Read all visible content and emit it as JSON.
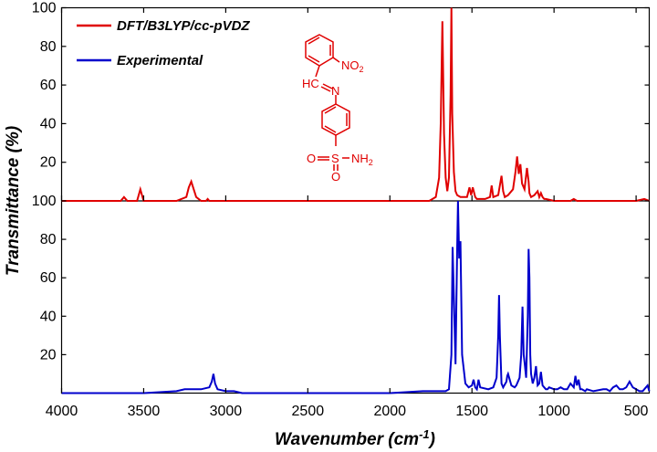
{
  "chart_data": {
    "type": "line",
    "xlabel": "Wavenumber (cm",
    "xlabel_sup": "-1",
    "xlabel_close": ")",
    "ylabel": "Transmittance (%)",
    "xlim": [
      4000,
      420
    ],
    "x_reversed": true,
    "x_ticks": [
      4000,
      3500,
      3000,
      2500,
      2000,
      1500,
      1000,
      500
    ],
    "x_tick_labels": [
      "4000",
      "3500",
      "3000",
      "2500",
      "2000",
      "1500",
      "1000",
      "500"
    ],
    "grid": false,
    "legend_position": "top-left",
    "panels": [
      {
        "name": "top",
        "ylim": [
          0,
          100
        ],
        "y_ticks": [
          20,
          40,
          60,
          80,
          100
        ],
        "y_tick_labels": [
          "20",
          "40",
          "60",
          "80",
          "100"
        ],
        "series": [
          {
            "name": "DFT/B3LYP/cc-pVDZ",
            "color": "#e00000",
            "x": [
              4000,
              3700,
              3640,
              3620,
              3600,
              3540,
              3520,
              3500,
              3460,
              3300,
              3240,
              3225,
              3210,
              3195,
              3180,
              3150,
              3120,
              3110,
              3100,
              3000,
              2500,
              2000,
              1760,
              1720,
              1700,
              1690,
              1680,
              1670,
              1660,
              1650,
              1640,
              1630,
              1625,
              1620,
              1610,
              1600,
              1590,
              1570,
              1530,
              1515,
              1505,
              1495,
              1480,
              1470,
              1460,
              1420,
              1390,
              1380,
              1370,
              1340,
              1320,
              1310,
              1300,
              1280,
              1250,
              1235,
              1225,
              1215,
              1205,
              1195,
              1180,
              1165,
              1155,
              1150,
              1140,
              1120,
              1100,
              1090,
              1080,
              1070,
              1060,
              1050,
              1000,
              900,
              880,
              860,
              800,
              700,
              600,
              500,
              450,
              420
            ],
            "y": [
              0,
              0,
              0,
              2,
              0,
              0,
              6,
              0,
              0,
              0,
              2,
              7,
              10,
              6,
              2,
              0,
              0,
              1,
              0,
              0,
              0,
              0,
              0,
              2,
              12,
              40,
              93,
              35,
              12,
              5,
              12,
              55,
              100,
              45,
              15,
              5,
              3,
              2,
              2,
              7,
              3,
              7,
              2,
              1,
              1,
              1,
              2,
              8,
              2,
              3,
              13,
              5,
              2,
              3,
              6,
              15,
              23,
              14,
              19,
              9,
              6,
              17,
              10,
              4,
              2,
              3,
              5,
              2,
              4,
              2,
              1,
              1,
              0,
              0,
              1,
              0,
              0,
              0,
              0,
              0,
              1,
              0
            ]
          }
        ]
      },
      {
        "name": "bottom",
        "ylim": [
          0,
          100
        ],
        "y_ticks": [
          20,
          40,
          60,
          80,
          100
        ],
        "y_tick_labels": [
          "20",
          "40",
          "60",
          "80",
          "100"
        ],
        "series": [
          {
            "name": "Experimental",
            "color": "#0000cc",
            "x": [
              4000,
              3500,
              3300,
              3250,
              3200,
              3150,
              3100,
              3085,
              3075,
              3065,
              3050,
              3000,
              2950,
              2900,
              2800,
              2500,
              2000,
              1800,
              1700,
              1660,
              1640,
              1625,
              1618,
              1610,
              1600,
              1590,
              1585,
              1578,
              1570,
              1560,
              1540,
              1520,
              1500,
              1490,
              1480,
              1470,
              1460,
              1450,
              1400,
              1370,
              1350,
              1340,
              1335,
              1330,
              1320,
              1310,
              1290,
              1285,
              1280,
              1270,
              1260,
              1240,
              1230,
              1210,
              1200,
              1192,
              1185,
              1178,
              1170,
              1160,
              1155,
              1150,
              1145,
              1140,
              1130,
              1120,
              1110,
              1100,
              1090,
              1080,
              1070,
              1060,
              1050,
              1040,
              1030,
              1000,
              980,
              960,
              940,
              920,
              900,
              890,
              880,
              870,
              860,
              850,
              840,
              830,
              810,
              800,
              760,
              700,
              680,
              660,
              640,
              620,
              600,
              580,
              560,
              540,
              520,
              500,
              480,
              460,
              440,
              430,
              420
            ],
            "y": [
              0,
              0,
              1,
              2,
              2,
              2,
              3,
              6,
              10,
              5,
              2,
              1,
              1,
              0,
              0,
              0,
              0,
              1,
              1,
              1,
              2,
              20,
              76,
              50,
              15,
              75,
              100,
              70,
              79,
              20,
              5,
              3,
              4,
              7,
              3,
              2,
              7,
              3,
              2,
              3,
              8,
              30,
              51,
              30,
              5,
              3,
              6,
              9,
              10,
              7,
              4,
              3,
              4,
              8,
              20,
              45,
              20,
              15,
              8,
              40,
              75,
              60,
              20,
              10,
              5,
              8,
              14,
              4,
              5,
              11,
              4,
              3,
              2,
              2,
              3,
              2,
              2,
              3,
              2,
              2,
              5,
              4,
              3,
              9,
              4,
              7,
              2,
              2,
              1,
              2,
              1,
              2,
              2,
              1,
              3,
              4,
              2,
              2,
              3,
              6,
              3,
              2,
              1,
              1,
              3,
              4,
              1
            ]
          }
        ]
      }
    ],
    "inset": {
      "type": "molecule-structure",
      "labels": [
        "NO",
        "2",
        "HC",
        "N",
        "S",
        "NH",
        "2",
        "O",
        "O"
      ],
      "color": "#e00000"
    }
  }
}
